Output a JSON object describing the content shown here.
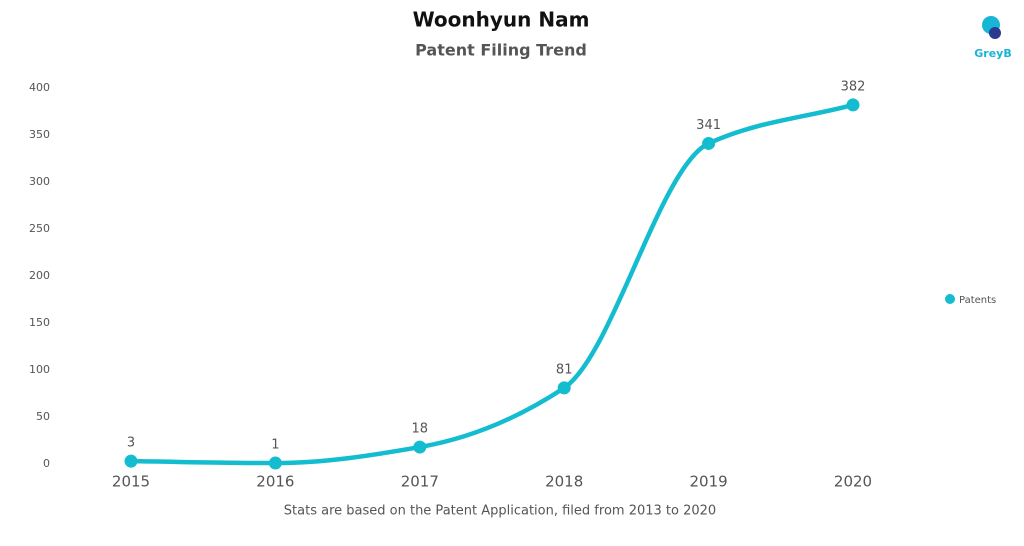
{
  "chart_data": {
    "type": "line",
    "title": "Woonhyun Nam",
    "subtitle": "Patent Filing Trend",
    "logo": "GreyB",
    "categories": [
      "2015",
      "2016",
      "2017",
      "2018",
      "2019",
      "2020"
    ],
    "series": [
      {
        "name": "Patents",
        "color": "#13bccf",
        "values": [
          3,
          1,
          18,
          81,
          341,
          382
        ]
      }
    ],
    "ylim": [
      0,
      400
    ],
    "yticks": [
      0,
      50,
      100,
      150,
      200,
      250,
      300,
      350,
      400
    ],
    "grid": false,
    "smooth": true,
    "legend": "right",
    "footnote": "Stats are based on the Patent Application, filed from 2013 to 2020"
  }
}
